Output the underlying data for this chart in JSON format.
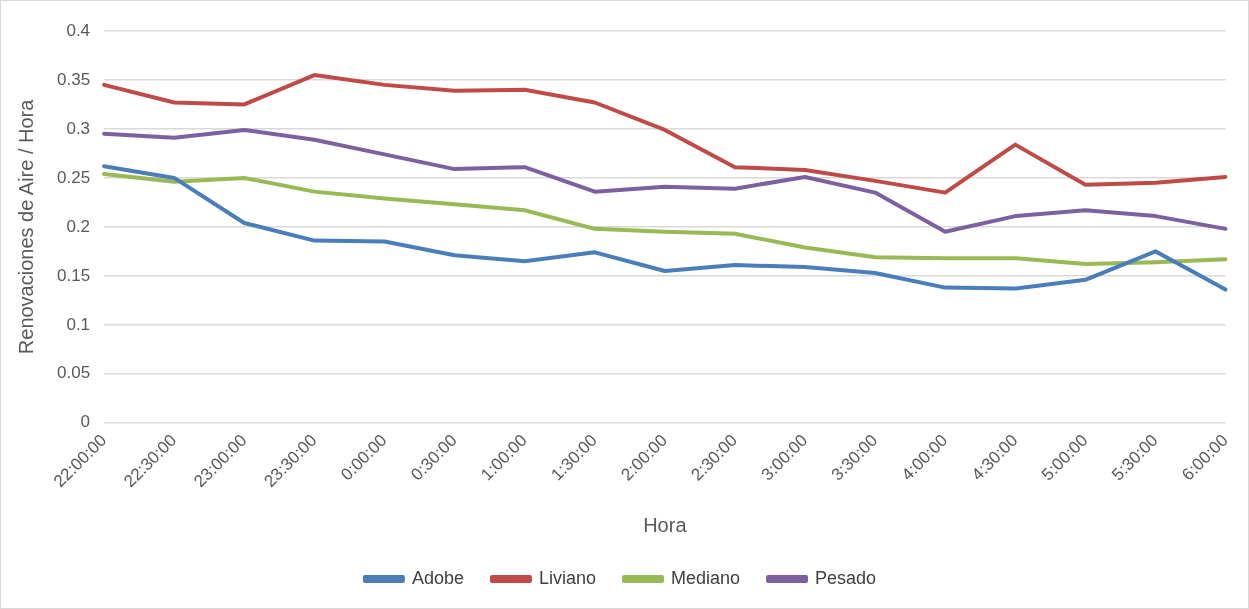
{
  "chart_data": {
    "type": "line",
    "xlabel": "Hora",
    "ylabel": "Renovaciones de Aire / Hora",
    "categories": [
      "22:00:00",
      "22:30:00",
      "23:00:00",
      "23:30:00",
      "0:00:00",
      "0:30:00",
      "1:00:00",
      "1:30:00",
      "2:00:00",
      "2:30:00",
      "3:00:00",
      "3:30:00",
      "4:00:00",
      "4:30:00",
      "5:00:00",
      "5:30:00",
      "6:00:00"
    ],
    "series": [
      {
        "name": "Adobe",
        "color": "#4a7ebb",
        "values": [
          0.262,
          0.25,
          0.204,
          0.186,
          0.185,
          0.171,
          0.165,
          0.174,
          0.155,
          0.161,
          0.159,
          0.153,
          0.138,
          0.137,
          0.146,
          0.175,
          0.136
        ]
      },
      {
        "name": "Liviano",
        "color": "#be4b48",
        "values": [
          0.345,
          0.327,
          0.325,
          0.355,
          0.345,
          0.339,
          0.34,
          0.327,
          0.299,
          0.261,
          0.258,
          0.247,
          0.235,
          0.284,
          0.243,
          0.245,
          0.251
        ]
      },
      {
        "name": "Mediano",
        "color": "#98b954",
        "values": [
          0.254,
          0.246,
          0.25,
          0.236,
          0.229,
          0.223,
          0.217,
          0.198,
          0.195,
          0.193,
          0.179,
          0.169,
          0.168,
          0.168,
          0.162,
          0.164,
          0.167
        ]
      },
      {
        "name": "Pesado",
        "color": "#7d60a0",
        "values": [
          0.295,
          0.291,
          0.299,
          0.289,
          0.274,
          0.259,
          0.261,
          0.236,
          0.241,
          0.239,
          0.251,
          0.235,
          0.195,
          0.211,
          0.217,
          0.211,
          0.198
        ]
      }
    ],
    "ylim": [
      0,
      0.4
    ],
    "yticks": [
      0,
      0.05,
      0.1,
      0.15,
      0.2,
      0.25,
      0.3,
      0.35,
      0.4
    ],
    "grid": "y",
    "legend": "bottom",
    "marker": "none",
    "line_style": "solid"
  }
}
